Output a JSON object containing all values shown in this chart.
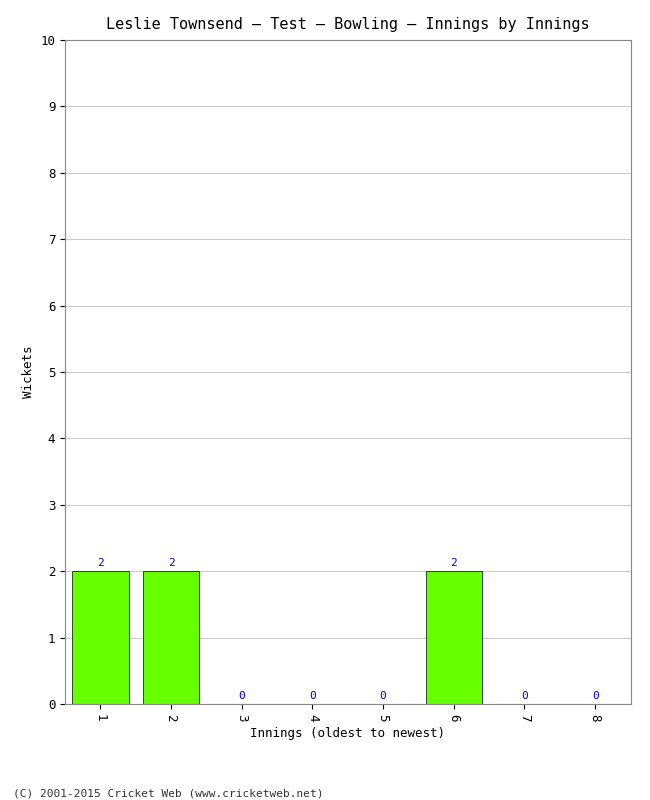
{
  "title": "Leslie Townsend – Test – Bowling – Innings by Innings",
  "xlabel": "Innings (oldest to newest)",
  "ylabel": "Wickets",
  "categories": [
    "1",
    "2",
    "3",
    "4",
    "5",
    "6",
    "7",
    "8"
  ],
  "values": [
    2,
    2,
    0,
    0,
    0,
    2,
    0,
    0
  ],
  "bar_color": "#66ff00",
  "bar_edge_color": "#000000",
  "ylim": [
    0,
    10
  ],
  "yticks": [
    0,
    1,
    2,
    3,
    4,
    5,
    6,
    7,
    8,
    9,
    10
  ],
  "label_color": "#0000cc",
  "background_color": "#ffffff",
  "plot_bg_color": "#ffffff",
  "footer": "(C) 2001-2015 Cricket Web (www.cricketweb.net)",
  "title_fontsize": 11,
  "axis_label_fontsize": 9,
  "tick_fontsize": 9,
  "annotation_fontsize": 8,
  "footer_fontsize": 8
}
